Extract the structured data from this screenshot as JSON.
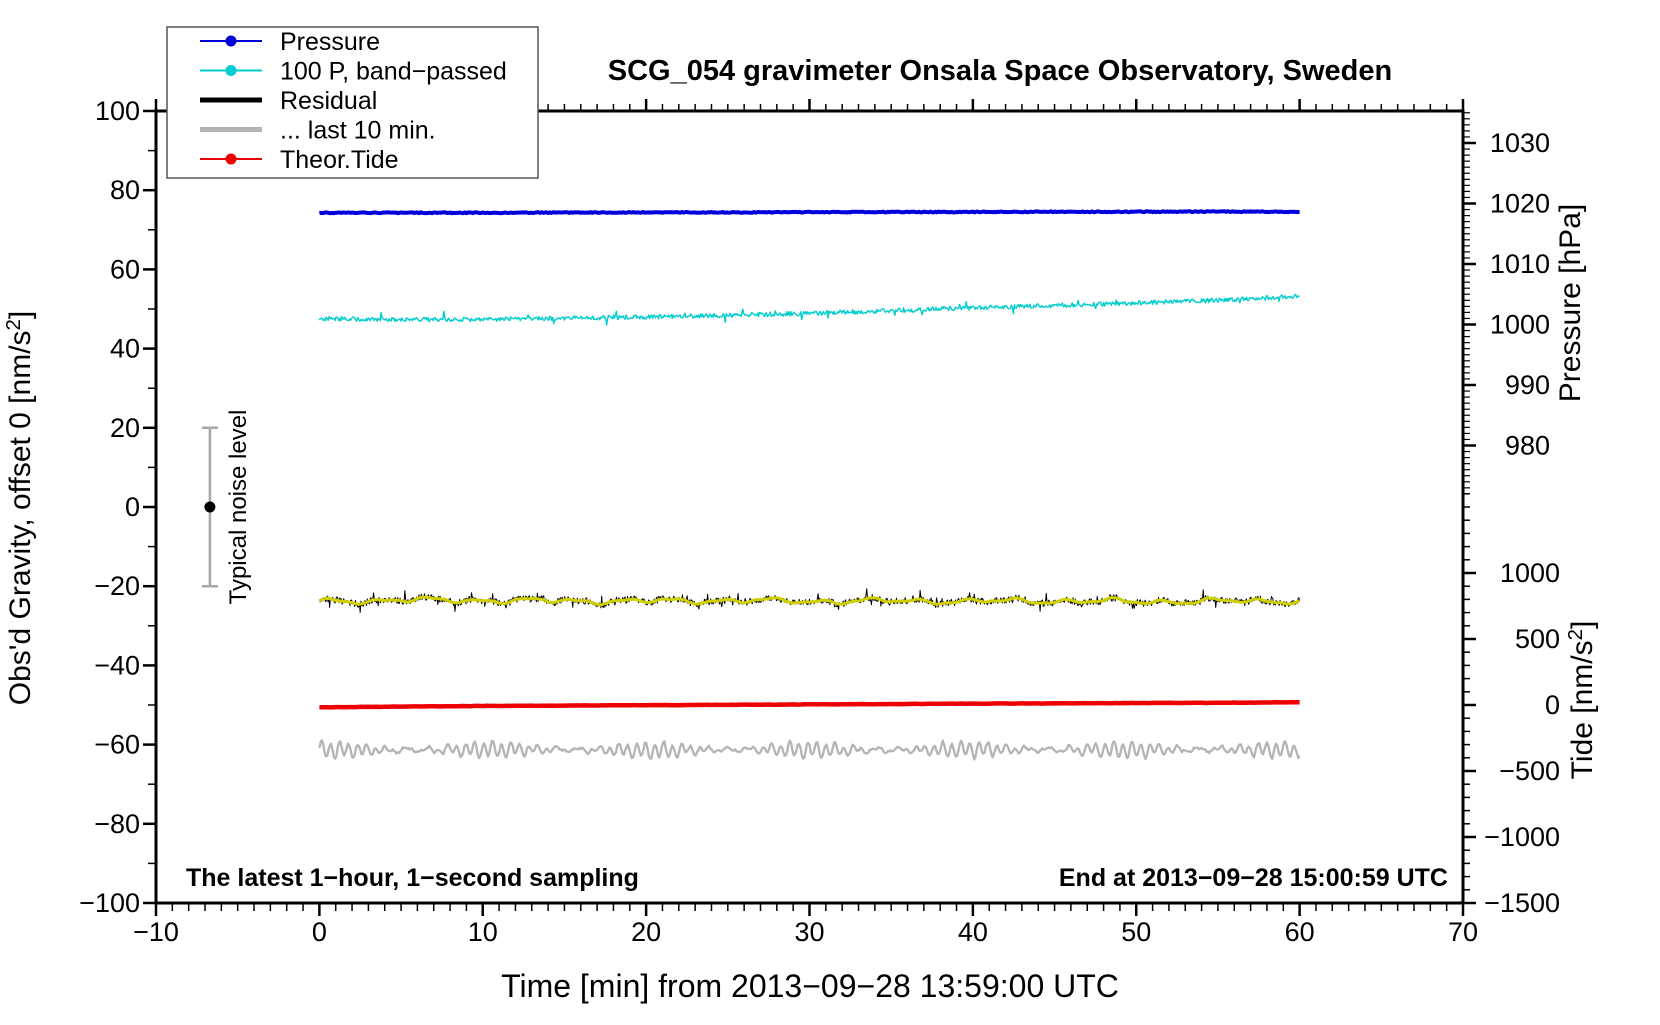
{
  "page_title": "SCG_054 gravimeter Onsala Space Observatory, Sweden",
  "chart_data": {
    "type": "line",
    "title": "SCG_054 gravimeter Onsala Space Observatory, Sweden",
    "xlabel": "Time [min] from 2013−09−28 13:59:00 UTC",
    "ylabel_left": "Obs'd Gravity, offset 0 [nm/s²]",
    "ylabel_right_top": "Pressure [hPa]",
    "ylabel_right_bottom": "Tide [nm/s²]",
    "xlim": [
      -10,
      70
    ],
    "ylim_left": [
      -100,
      100
    ],
    "grid": false,
    "legend_position": "top-left",
    "x_major_ticks": [
      -10,
      0,
      10,
      20,
      30,
      40,
      50,
      60,
      70
    ],
    "x_minor_step": 1,
    "y_left_major_ticks": [
      -100,
      -80,
      -60,
      -40,
      -20,
      0,
      20,
      40,
      60,
      80,
      100
    ],
    "y_left_minor_step": 10,
    "pressure_axis": {
      "major_ticks": [
        1030,
        1020,
        1010,
        1000,
        990,
        980
      ],
      "minor_step": 1,
      "minor_range": [
        973,
        1035
      ]
    },
    "tide_axis": {
      "major_ticks": [
        1000,
        500,
        0,
        -500,
        -1000,
        -1500
      ],
      "minor_step": 100,
      "minor_range": [
        -1500,
        1600
      ]
    },
    "annotations": {
      "sampling_note": "The latest 1−hour, 1−second sampling",
      "end_time_note": "End at 2013−09−28 15:00:59 UTC",
      "noise_bar_label": "Typical noise level"
    },
    "noise_bar": {
      "x_min": -6.7,
      "y_center": 0,
      "y_low": -20,
      "y_high": 20
    },
    "x_anchors_min": [
      0,
      5,
      10,
      15,
      20,
      25,
      30,
      35,
      40,
      45,
      50,
      55,
      60
    ],
    "series": [
      {
        "name": "Pressure",
        "color": "#0000dd",
        "width": 4,
        "step": 0.1,
        "noise": 0.11,
        "values": [
          74.3,
          74.3,
          74.3,
          74.35,
          74.4,
          74.4,
          74.45,
          74.5,
          74.5,
          74.55,
          74.55,
          74.6,
          74.55
        ]
      },
      {
        "name": "100 P, band−passed",
        "color": "#00cdcd",
        "width": 1.4,
        "step": 0.06,
        "noise": 0.55,
        "spike_prob": 0.04,
        "spike": 1.7,
        "values": [
          47.6,
          47.3,
          47.4,
          47.7,
          48.0,
          48.4,
          48.9,
          49.6,
          50.3,
          50.9,
          51.5,
          52.2,
          53.2
        ]
      },
      {
        "name": "Residual",
        "color": "#000000",
        "width": 1,
        "step": 0.048,
        "noise": 0.85,
        "spike_prob": 0.08,
        "spike": 2.1,
        "wiggle": true,
        "values": [
          -23.9,
          -23.5,
          -23.6,
          -23.7,
          -23.8,
          -23.6,
          -23.8,
          -23.7,
          -23.8,
          -23.7,
          -23.9,
          -23.8,
          -23.7
        ]
      },
      {
        "name": "Residual smoothed",
        "color": "#cfcf00",
        "width": 3,
        "step": 0.2,
        "noise": 0.08,
        "wiggle": true,
        "values": [
          -23.9,
          -23.5,
          -23.6,
          -23.7,
          -23.8,
          -23.6,
          -23.8,
          -23.7,
          -23.8,
          -23.7,
          -23.9,
          -23.8,
          -23.7
        ]
      },
      {
        "name": "... last 10 min.",
        "color": "#b4b4b4",
        "width": 2.3,
        "step": 0.08,
        "noise": 0.25,
        "wave": true,
        "values": [
          -61.3,
          -61.4,
          -61.2,
          -61.3,
          -61.5,
          -61.2,
          -61.3,
          -61.4,
          -61.2,
          -61.3,
          -61.4,
          -61.2,
          -61.4
        ]
      },
      {
        "name": "Theor.Tide",
        "color": "#ee0000",
        "width": 4.5,
        "step": 0.25,
        "noise": 0.04,
        "values": [
          -50.6,
          -50.4,
          -50.25,
          -50.15,
          -50.05,
          -49.95,
          -49.85,
          -49.75,
          -49.65,
          -49.6,
          -49.5,
          -49.45,
          -49.3
        ]
      }
    ],
    "legend": [
      {
        "label": "Pressure",
        "color": "#0000dd",
        "marker": "dot",
        "line_width": 2
      },
      {
        "label": "100 P, band−passed",
        "color": "#00cdcd",
        "marker": "dot",
        "line_width": 2
      },
      {
        "label": "Residual",
        "color": "#000000",
        "marker": "none",
        "line_width": 5
      },
      {
        "label": "... last 10 min.",
        "color": "#b4b4b4",
        "marker": "none",
        "line_width": 5
      },
      {
        "label": "Theor.Tide",
        "color": "#ee0000",
        "marker": "dot",
        "line_width": 2
      }
    ],
    "colors": {
      "frame": "#000000",
      "noise_bar": "#a8a8a8",
      "legend_border": "#555555"
    }
  }
}
